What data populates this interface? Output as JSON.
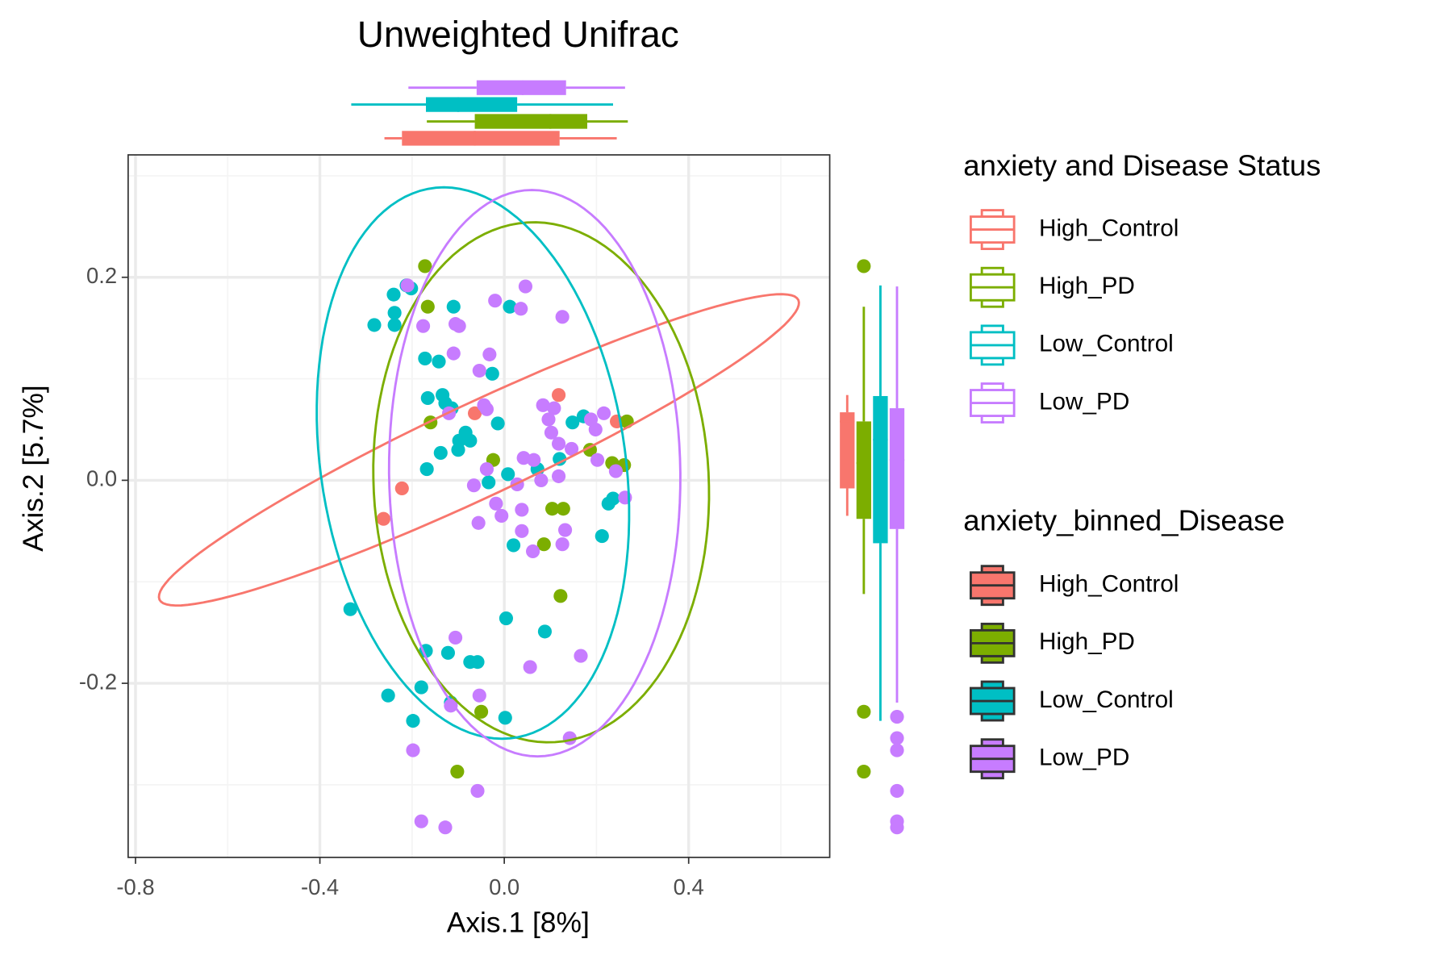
{
  "chart_data": {
    "type": "scatter",
    "title": "Unweighted Unifrac",
    "x_label": "Axis.1   [8%]",
    "y_label": "Axis.2   [5.7%]",
    "xlim": [
      -0.816,
      0.706
    ],
    "ylim": [
      -0.3715,
      0.3206
    ],
    "xticks": [
      -0.8,
      -0.4,
      {
        "value": 0,
        "label": "0.0"
      },
      0.4
    ],
    "yticks": [
      -0.2,
      {
        "value": 0,
        "label": "0.0"
      },
      0.2
    ],
    "x_minor_grid": [
      -0.6,
      -0.2,
      0.2,
      0.6
    ],
    "y_minor_grid": [
      -0.3,
      -0.1,
      0.1,
      0.3
    ],
    "grid": true,
    "legend_title": "anxiety and Disease Status",
    "legend2_title": "anxiety_binned_Disease",
    "series": [
      {
        "name": "High_Control",
        "color": "#F8766D",
        "x": [
          -0.064,
          0.118,
          -0.222,
          -0.262,
          0.244
        ],
        "y": [
          0.066,
          0.084,
          -0.008,
          -0.038,
          0.058
        ],
        "ellipse": {
          "center": [
            -0.055,
            0.03
          ],
          "axis1": [
            0.693,
            0.1476
          ],
          "axis2": [
            0.0428,
            -0.0416
          ]
        },
        "x_box": {
          "lower_whisker": -0.26,
          "q1": -0.222,
          "median": -0.064,
          "q3": 0.12,
          "upper_whisker": 0.244,
          "outliers": []
        },
        "y_box": {
          "lower_whisker": -0.035,
          "q1": -0.008,
          "median": 0.058,
          "q3": 0.067,
          "upper_whisker": 0.084,
          "outliers": []
        }
      },
      {
        "name": "High_PD",
        "color": "#7CAE00",
        "x": [
          -0.172,
          -0.166,
          -0.16,
          -0.024,
          0.186,
          0.234,
          0.266,
          0.26,
          0.104,
          0.128,
          0.086,
          0.122,
          -0.05,
          -0.102
        ],
        "y": [
          0.211,
          0.171,
          0.057,
          0.02,
          0.03,
          0.017,
          0.058,
          0.015,
          -0.028,
          -0.028,
          -0.063,
          -0.114,
          -0.228,
          -0.287
        ],
        "ellipse": {
          "center": [
            0.08,
            -0.002
          ],
          "axis1": [
            -0.03,
            0.256
          ],
          "axis2": [
            0.363,
            0.01
          ]
        },
        "x_box": {
          "lower_whisker": -0.168,
          "q1": -0.064,
          "median": 0.1,
          "q3": 0.18,
          "upper_whisker": 0.268,
          "outliers": []
        },
        "y_box": {
          "lower_whisker": -0.112,
          "q1": -0.038,
          "median": 0.017,
          "q3": 0.058,
          "upper_whisker": 0.171,
          "outliers": [
            0.211,
            -0.228,
            -0.287
          ]
        }
      },
      {
        "name": "Low_Control",
        "color": "#00BFC4",
        "x": [
          -0.282,
          -0.24,
          -0.238,
          -0.238,
          -0.212,
          -0.202,
          -0.11,
          0.012,
          -0.172,
          -0.142,
          -0.026,
          -0.166,
          -0.134,
          -0.128,
          -0.114,
          -0.084,
          -0.098,
          -0.074,
          -0.138,
          -0.1,
          -0.014,
          -0.168,
          -0.034,
          0.008,
          0.072,
          0.12,
          0.148,
          0.172,
          0.226,
          0.236,
          0.212,
          0.02,
          -0.334,
          0.004,
          0.088,
          -0.17,
          -0.122,
          -0.074,
          -0.058,
          -0.252,
          -0.18,
          -0.198,
          -0.116,
          0.002
        ],
        "y": [
          0.153,
          0.183,
          0.165,
          0.153,
          0.192,
          0.189,
          0.171,
          0.171,
          0.12,
          0.117,
          0.105,
          0.081,
          0.084,
          0.076,
          0.071,
          0.047,
          0.039,
          0.039,
          0.027,
          0.03,
          0.056,
          0.011,
          -0.002,
          0.006,
          0.011,
          0.021,
          0.057,
          0.063,
          -0.023,
          -0.018,
          -0.055,
          -0.064,
          -0.127,
          -0.136,
          -0.149,
          -0.168,
          -0.17,
          -0.179,
          -0.179,
          -0.212,
          -0.204,
          -0.237,
          -0.219,
          -0.234
        ],
        "ellipse": {
          "center": [
            -0.068,
            0.017
          ],
          "axis1": [
            -0.063,
            0.2716
          ],
          "axis2": [
            0.333,
            0.0
          ]
        },
        "x_box": {
          "lower_whisker": -0.332,
          "q1": -0.17,
          "median": -0.1,
          "q3": 0.028,
          "upper_whisker": 0.236,
          "outliers": []
        },
        "y_box": {
          "lower_whisker": -0.237,
          "q1": -0.062,
          "median": 0.04,
          "q3": 0.083,
          "upper_whisker": 0.192,
          "outliers": []
        }
      },
      {
        "name": "Low_PD",
        "color": "#C77CFF",
        "x": [
          0.046,
          -0.21,
          -0.02,
          0.036,
          0.126,
          -0.176,
          -0.106,
          -0.098,
          -0.11,
          -0.032,
          -0.054,
          -0.12,
          -0.044,
          -0.038,
          0.084,
          0.108,
          0.188,
          0.216,
          0.096,
          0.198,
          0.102,
          0.118,
          0.146,
          0.202,
          0.042,
          0.064,
          -0.038,
          -0.066,
          0.028,
          0.08,
          0.118,
          0.242,
          0.262,
          -0.018,
          0.038,
          -0.006,
          -0.056,
          0.038,
          0.132,
          0.126,
          0.062,
          -0.106,
          0.056,
          0.166,
          -0.054,
          -0.116,
          0.142,
          -0.198,
          -0.058,
          -0.18,
          -0.128
        ],
        "y": [
          0.191,
          0.192,
          0.177,
          0.169,
          0.161,
          0.152,
          0.154,
          0.152,
          0.125,
          0.124,
          0.108,
          0.066,
          0.074,
          0.07,
          0.074,
          0.071,
          0.06,
          0.066,
          0.06,
          0.05,
          0.047,
          0.036,
          0.031,
          0.02,
          0.022,
          0.02,
          0.011,
          -0.005,
          -0.004,
          0,
          0.004,
          0.009,
          -0.017,
          -0.023,
          -0.029,
          -0.035,
          -0.042,
          -0.05,
          -0.049,
          -0.063,
          -0.07,
          -0.155,
          -0.184,
          -0.173,
          -0.212,
          -0.222,
          -0.254,
          -0.266,
          -0.306,
          -0.336,
          -0.342
        ],
        "ellipse": {
          "center": [
            0.066,
            0.007
          ],
          "axis1": [
            -0.006,
            0.279
          ],
          "axis2": [
            0.316,
            0.0
          ]
        },
        "x_box": {
          "lower_whisker": -0.208,
          "q1": -0.06,
          "median": 0.04,
          "q3": 0.134,
          "upper_whisker": 0.262,
          "outliers": []
        },
        "y_box": {
          "lower_whisker": -0.219,
          "q1": -0.048,
          "median": 0.02,
          "q3": 0.071,
          "upper_whisker": 0.191,
          "outliers": [
            -0.233,
            -0.254,
            -0.266,
            -0.306,
            -0.336,
            -0.342
          ]
        }
      }
    ]
  }
}
